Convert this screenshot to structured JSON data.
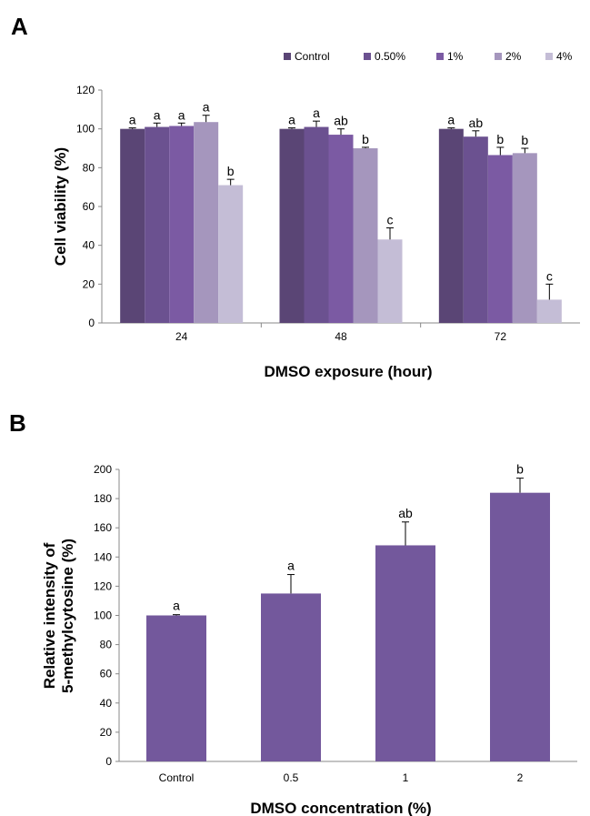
{
  "chart_data": [
    {
      "panel": "A",
      "type": "bar",
      "categories": [
        "24",
        "48",
        "72"
      ],
      "xlabel": "DMSO exposure (hour)",
      "ylabel": "Cell viability (%)",
      "ylim": [
        0,
        120
      ],
      "yticks": [
        0,
        20,
        40,
        60,
        80,
        100,
        120
      ],
      "legend_position": "top-right",
      "series": [
        {
          "name": "Control",
          "color": "#5a4575",
          "values": [
            100,
            100,
            100
          ],
          "errors": [
            0.5,
            0.5,
            0.5
          ],
          "labels": [
            "a",
            "a",
            "a"
          ]
        },
        {
          "name": "0.50%",
          "color": "#6b5190",
          "values": [
            101,
            101,
            96
          ],
          "errors": [
            2,
            3,
            3
          ],
          "labels": [
            "a",
            "a",
            "ab"
          ]
        },
        {
          "name": "1%",
          "color": "#7b5aa3",
          "values": [
            101.5,
            97,
            86.5
          ],
          "errors": [
            1.5,
            3,
            4
          ],
          "labels": [
            "a",
            "ab",
            "b"
          ]
        },
        {
          "name": "2%",
          "color": "#a596bd",
          "values": [
            103.5,
            90,
            87.5
          ],
          "errors": [
            3.5,
            0.5,
            2.5
          ],
          "labels": [
            "a",
            "b",
            "b"
          ]
        },
        {
          "name": "4%",
          "color": "#c4bdd6",
          "values": [
            71,
            43,
            12
          ],
          "errors": [
            3,
            6,
            8
          ],
          "labels": [
            "b",
            "c",
            "c"
          ]
        }
      ]
    },
    {
      "panel": "B",
      "type": "bar",
      "categories": [
        "Control",
        "0.5",
        "1",
        "2"
      ],
      "values": [
        100,
        115,
        148,
        184
      ],
      "errors": [
        0.5,
        13,
        16,
        10
      ],
      "labels": [
        "a",
        "a",
        "ab",
        "b"
      ],
      "color": "#73589c",
      "xlabel": "DMSO concentration (%)",
      "ylabel": [
        "Relative intensity of",
        "5-methylcytosine (%)"
      ],
      "ylim": [
        0,
        200
      ],
      "yticks": [
        0,
        20,
        40,
        60,
        80,
        100,
        120,
        140,
        160,
        180,
        200
      ]
    }
  ]
}
